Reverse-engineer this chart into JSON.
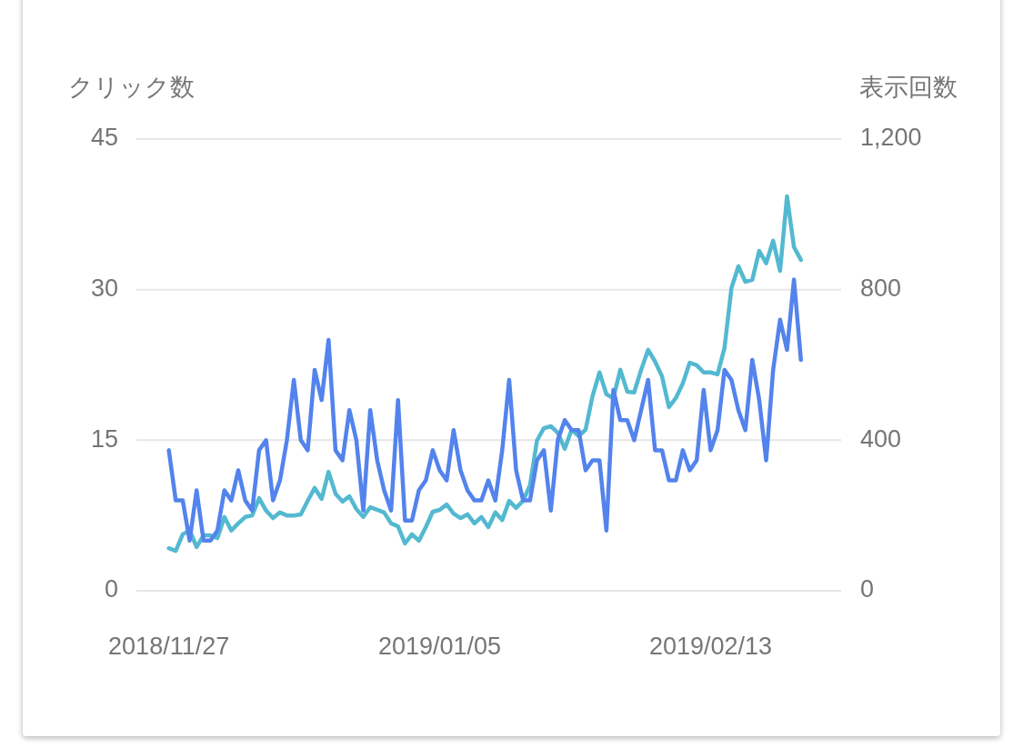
{
  "chart_data": {
    "type": "line",
    "ylabel": "クリック数",
    "y2label": "表示回数",
    "x": [
      "2018-11-27",
      "2018-11-28",
      "2018-11-29",
      "2018-11-30",
      "2018-12-01",
      "2018-12-02",
      "2018-12-03",
      "2018-12-04",
      "2018-12-05",
      "2018-12-06",
      "2018-12-07",
      "2018-12-08",
      "2018-12-09",
      "2018-12-10",
      "2018-12-11",
      "2018-12-12",
      "2018-12-13",
      "2018-12-14",
      "2018-12-15",
      "2018-12-16",
      "2018-12-17",
      "2018-12-18",
      "2018-12-19",
      "2018-12-20",
      "2018-12-21",
      "2018-12-22",
      "2018-12-23",
      "2018-12-24",
      "2018-12-25",
      "2018-12-26",
      "2018-12-27",
      "2018-12-28",
      "2018-12-29",
      "2018-12-30",
      "2018-12-31",
      "2019-01-01",
      "2019-01-02",
      "2019-01-03",
      "2019-01-04",
      "2019-01-05",
      "2019-01-06",
      "2019-01-07",
      "2019-01-08",
      "2019-01-09",
      "2019-01-10",
      "2019-01-11",
      "2019-01-12",
      "2019-01-13",
      "2019-01-14",
      "2019-01-15",
      "2019-01-16",
      "2019-01-17",
      "2019-01-18",
      "2019-01-19",
      "2019-01-20",
      "2019-01-21",
      "2019-01-22",
      "2019-01-23",
      "2019-01-24",
      "2019-01-25",
      "2019-01-26",
      "2019-01-27",
      "2019-01-28",
      "2019-01-29",
      "2019-01-30",
      "2019-01-31",
      "2019-02-01",
      "2019-02-02",
      "2019-02-03",
      "2019-02-04",
      "2019-02-05",
      "2019-02-06",
      "2019-02-07",
      "2019-02-08",
      "2019-02-09",
      "2019-02-10",
      "2019-02-11",
      "2019-02-12",
      "2019-02-13",
      "2019-02-14",
      "2019-02-15",
      "2019-02-16",
      "2019-02-17",
      "2019-02-18",
      "2019-02-19",
      "2019-02-20",
      "2019-02-21",
      "2019-02-22",
      "2019-02-23",
      "2019-02-24",
      "2019-02-25",
      "2019-02-26"
    ],
    "series": [
      {
        "color": "#5383ec",
        "values": [
          14,
          9,
          9,
          5,
          10,
          5,
          5,
          6,
          10,
          9,
          12,
          9,
          8,
          14,
          15,
          9,
          11,
          15,
          21,
          15,
          14,
          22,
          19,
          25,
          14,
          13,
          18,
          15,
          8,
          18,
          13,
          10,
          8,
          19,
          7,
          7,
          10,
          11,
          14,
          12,
          11,
          16,
          12,
          10,
          9,
          9,
          11,
          9,
          14,
          21,
          12,
          9,
          9,
          13,
          14,
          8,
          15,
          17,
          16,
          16,
          12,
          13,
          13,
          6,
          20,
          17,
          17,
          15,
          18,
          21,
          14,
          14,
          11,
          11,
          14,
          12,
          13,
          20,
          14,
          16,
          22,
          21,
          18,
          16,
          23,
          19,
          13,
          22,
          27,
          24,
          31,
          23
        ]
      },
      {
        "color": "#53b9d0",
        "axis": "y2",
        "values": [
          113,
          106,
          150,
          160,
          116,
          147,
          147,
          140,
          196,
          160,
          179,
          196,
          200,
          246,
          213,
          193,
          208,
          200,
          200,
          203,
          239,
          273,
          244,
          316,
          258,
          237,
          251,
          217,
          196,
          222,
          215,
          208,
          179,
          171,
          126,
          150,
          133,
          169,
          210,
          215,
          229,
          205,
          193,
          203,
          179,
          196,
          169,
          208,
          188,
          239,
          220,
          239,
          280,
          399,
          432,
          437,
          420,
          377,
          428,
          411,
          428,
          517,
          580,
          522,
          512,
          587,
          529,
          527,
          587,
          640,
          609,
          570,
          488,
          512,
          551,
          606,
          599,
          580,
          580,
          575,
          645,
          804,
          862,
          821,
          826,
          903,
          870,
          930,
          850,
          1048,
          913,
          879
        ]
      }
    ],
    "xlim": [
      "2018-11-22T08:00",
      "2019-03-03T19:00"
    ],
    "xticks": [
      {
        "value": "2018-11-27",
        "label": "2018/11/27"
      },
      {
        "value": "2019-01-05",
        "label": "2019/01/05"
      },
      {
        "value": "2019-02-13",
        "label": "2019/02/13"
      }
    ],
    "ylim": [
      0,
      45
    ],
    "yticks": [
      {
        "value": 0,
        "label": "0"
      },
      {
        "value": 15,
        "label": "15"
      },
      {
        "value": 30,
        "label": "30"
      },
      {
        "value": 45,
        "label": "45"
      }
    ],
    "y2lim": [
      0,
      1200
    ],
    "y2ticks": [
      {
        "value": 0,
        "label": "0"
      },
      {
        "value": 400,
        "label": "400"
      },
      {
        "value": 800,
        "label": "800"
      },
      {
        "value": 1200,
        "label": "1,200"
      }
    ],
    "grid": "y",
    "legend": false,
    "marker": "none",
    "line_style": "solid"
  }
}
